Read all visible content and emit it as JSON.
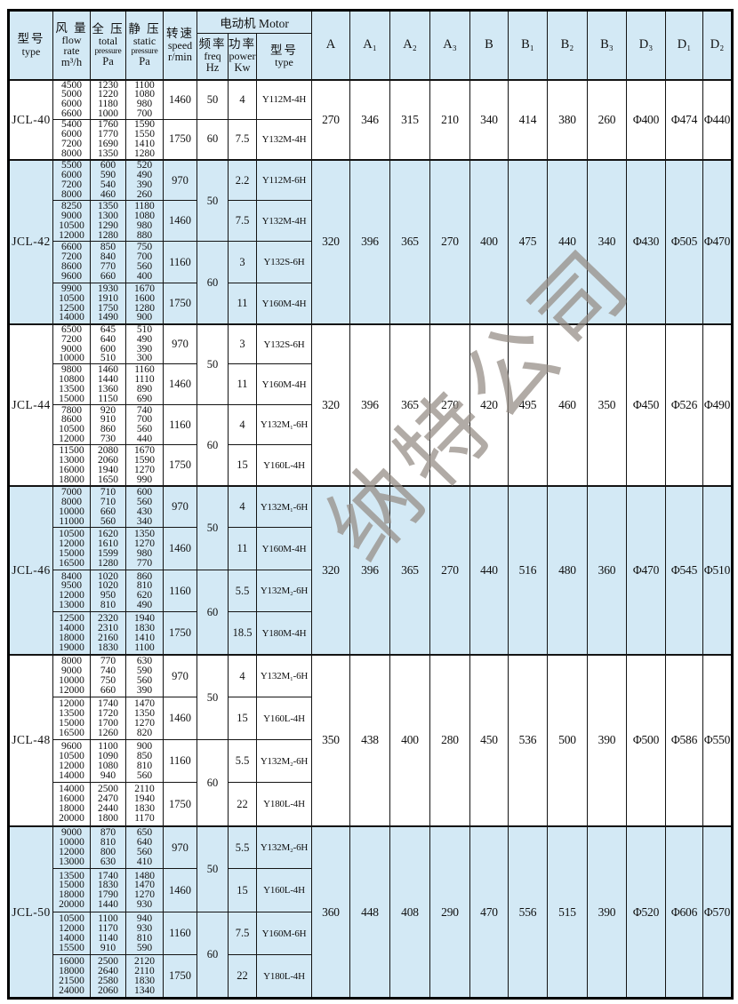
{
  "colors": {
    "shade": "#d3e9f5",
    "watermark": "#948c84"
  },
  "watermark": "纳特公司",
  "header_cells": {
    "model": [
      "型号",
      "type"
    ],
    "flow": [
      "风 量",
      "flow",
      "rate",
      "m³/h"
    ],
    "total": [
      "全 压",
      "total",
      "pressure",
      "Pa"
    ],
    "static": [
      "静 压",
      "static",
      "pressure",
      "Pa"
    ],
    "speed": [
      "转速",
      "speed",
      "r/min"
    ],
    "motor_group": "电动机 Motor",
    "freq": [
      "频率",
      "freq",
      "Hz"
    ],
    "power": [
      "功率",
      "power",
      "Kw"
    ],
    "motor_model": [
      "型号",
      "type"
    ],
    "dims": [
      "A",
      "A₁",
      "A₂",
      "A₃",
      "B",
      "B₁",
      "B₂",
      "B₃",
      "D₃",
      "D₁",
      "D₂"
    ]
  },
  "sections": [
    {
      "model": "JCL-40",
      "rows": [
        {
          "flows": [
            "4500",
            "5000",
            "6000",
            "6600"
          ],
          "totals": [
            "1230",
            "1220",
            "1180",
            "1000"
          ],
          "statics": [
            "1100",
            "1080",
            "980",
            "700"
          ],
          "speed": "1460",
          "freq": "50",
          "power": "4",
          "motor": "Y112M-4H"
        },
        {
          "flows": [
            "5400",
            "6000",
            "7200",
            "8000"
          ],
          "totals": [
            "1760",
            "1770",
            "1690",
            "1350"
          ],
          "statics": [
            "1590",
            "1550",
            "1410",
            "1280"
          ],
          "speed": "1750",
          "freq": "60",
          "power": "7.5",
          "motor": "Y132M-4H"
        }
      ],
      "dims": [
        "270",
        "346",
        "315",
        "210",
        "340",
        "414",
        "380",
        "260",
        "Φ400",
        "Φ474",
        "Φ440"
      ]
    },
    {
      "model": "JCL-42",
      "rows": [
        {
          "flows": [
            "5500",
            "6000",
            "7200",
            "8000"
          ],
          "totals": [
            "600",
            "590",
            "540",
            "460"
          ],
          "statics": [
            "520",
            "490",
            "390",
            "260"
          ],
          "speed": "970",
          "freq": "50",
          "power": "2.2",
          "motor": "Y112M-6H"
        },
        {
          "flows": [
            "8250",
            "9000",
            "10500",
            "12000"
          ],
          "totals": [
            "1350",
            "1300",
            "1290",
            "1280"
          ],
          "statics": [
            "1180",
            "1080",
            "980",
            "880"
          ],
          "speed": "1460",
          "power": "7.5",
          "motor": "Y132M-4H"
        },
        {
          "flows": [
            "6600",
            "7200",
            "8600",
            "9600"
          ],
          "totals": [
            "850",
            "840",
            "770",
            "660"
          ],
          "statics": [
            "750",
            "700",
            "560",
            "400"
          ],
          "speed": "1160",
          "freq": "60",
          "power": "3",
          "motor": "Y132S-6H"
        },
        {
          "flows": [
            "9900",
            "10500",
            "12500",
            "14000"
          ],
          "totals": [
            "1930",
            "1910",
            "1750",
            "1490"
          ],
          "statics": [
            "1670",
            "1600",
            "1280",
            "900"
          ],
          "speed": "1750",
          "power": "11",
          "motor": "Y160M-4H"
        }
      ],
      "dims": [
        "320",
        "396",
        "365",
        "270",
        "400",
        "475",
        "440",
        "340",
        "Φ430",
        "Φ505",
        "Φ470"
      ]
    },
    {
      "model": "JCL-44",
      "rows": [
        {
          "flows": [
            "6500",
            "7200",
            "9000",
            "10000"
          ],
          "totals": [
            "645",
            "640",
            "600",
            "510"
          ],
          "statics": [
            "510",
            "490",
            "390",
            "300"
          ],
          "speed": "970",
          "freq": "50",
          "power": "3",
          "motor": "Y132S-6H"
        },
        {
          "flows": [
            "9800",
            "10800",
            "13500",
            "15000"
          ],
          "totals": [
            "1460",
            "1440",
            "1360",
            "1150"
          ],
          "statics": [
            "1160",
            "1110",
            "890",
            "690"
          ],
          "speed": "1460",
          "power": "11",
          "motor": "Y160M-4H"
        },
        {
          "flows": [
            "7800",
            "8600",
            "10500",
            "12000"
          ],
          "totals": [
            "920",
            "910",
            "860",
            "730"
          ],
          "statics": [
            "740",
            "700",
            "560",
            "440"
          ],
          "speed": "1160",
          "freq": "60",
          "power": "4",
          "motor": "Y132M₁-6H"
        },
        {
          "flows": [
            "11500",
            "13000",
            "16000",
            "18000"
          ],
          "totals": [
            "2080",
            "2060",
            "1940",
            "1650"
          ],
          "statics": [
            "1670",
            "1590",
            "1270",
            "990"
          ],
          "speed": "1750",
          "power": "15",
          "motor": "Y160L-4H"
        }
      ],
      "dims": [
        "320",
        "396",
        "365",
        "270",
        "420",
        "495",
        "460",
        "350",
        "Φ450",
        "Φ526",
        "Φ490"
      ]
    },
    {
      "model": "JCL-46",
      "rows": [
        {
          "flows": [
            "7000",
            "8000",
            "10000",
            "11000"
          ],
          "totals": [
            "710",
            "710",
            "660",
            "560"
          ],
          "statics": [
            "600",
            "560",
            "430",
            "340"
          ],
          "speed": "970",
          "freq": "50",
          "power": "4",
          "motor": "Y132M₁-6H"
        },
        {
          "flows": [
            "10500",
            "12000",
            "15000",
            "16500"
          ],
          "totals": [
            "1620",
            "1610",
            "1599",
            "1280"
          ],
          "statics": [
            "1350",
            "1270",
            "980",
            "770"
          ],
          "speed": "1460",
          "power": "11",
          "motor": "Y160M-4H"
        },
        {
          "flows": [
            "8400",
            "9500",
            "12000",
            "13000"
          ],
          "totals": [
            "1020",
            "1020",
            "950",
            "810"
          ],
          "statics": [
            "860",
            "810",
            "620",
            "490"
          ],
          "speed": "1160",
          "freq": "60",
          "power": "5.5",
          "motor": "Y132M₂-6H"
        },
        {
          "flows": [
            "12500",
            "14000",
            "18000",
            "19000"
          ],
          "totals": [
            "2320",
            "2310",
            "2160",
            "1830"
          ],
          "statics": [
            "1940",
            "1830",
            "1410",
            "1100"
          ],
          "speed": "1750",
          "power": "18.5",
          "motor": "Y180M-4H"
        }
      ],
      "dims": [
        "320",
        "396",
        "365",
        "270",
        "440",
        "516",
        "480",
        "360",
        "Φ470",
        "Φ545",
        "Φ510"
      ]
    },
    {
      "model": "JCL-48",
      "rows": [
        {
          "flows": [
            "8000",
            "9000",
            "10000",
            "12000"
          ],
          "totals": [
            "770",
            "740",
            "750",
            "660"
          ],
          "statics": [
            "630",
            "590",
            "560",
            "390"
          ],
          "speed": "970",
          "freq": "50",
          "power": "4",
          "motor": "Y132M₁-6H"
        },
        {
          "flows": [
            "12000",
            "13500",
            "15000",
            "16500"
          ],
          "totals": [
            "1740",
            "1720",
            "1700",
            "1260"
          ],
          "statics": [
            "1470",
            "1350",
            "1270",
            "820"
          ],
          "speed": "1460",
          "power": "15",
          "motor": "Y160L-4H"
        },
        {
          "flows": [
            "9600",
            "10500",
            "12000",
            "14000"
          ],
          "totals": [
            "1100",
            "1090",
            "1080",
            "940"
          ],
          "statics": [
            "900",
            "850",
            "810",
            "560"
          ],
          "speed": "1160",
          "freq": "60",
          "power": "5.5",
          "motor": "Y132M₂-6H"
        },
        {
          "flows": [
            "14000",
            "16000",
            "18000",
            "20000"
          ],
          "totals": [
            "2500",
            "2470",
            "2440",
            "1800"
          ],
          "statics": [
            "2110",
            "1940",
            "1830",
            "1170"
          ],
          "speed": "1750",
          "power": "22",
          "motor": "Y180L-4H"
        }
      ],
      "dims": [
        "350",
        "438",
        "400",
        "280",
        "450",
        "536",
        "500",
        "390",
        "Φ500",
        "Φ586",
        "Φ550"
      ]
    },
    {
      "model": "JCL-50",
      "rows": [
        {
          "flows": [
            "9000",
            "10000",
            "12000",
            "13000"
          ],
          "totals": [
            "870",
            "810",
            "800",
            "630"
          ],
          "statics": [
            "650",
            "640",
            "560",
            "410"
          ],
          "speed": "970",
          "freq": "50",
          "power": "5.5",
          "motor": "Y132M₂-6H"
        },
        {
          "flows": [
            "13500",
            "15000",
            "18000",
            "20000"
          ],
          "totals": [
            "1740",
            "1830",
            "1790",
            "1440"
          ],
          "statics": [
            "1480",
            "1470",
            "1270",
            "930"
          ],
          "speed": "1460",
          "power": "15",
          "motor": "Y160L-4H"
        },
        {
          "flows": [
            "10500",
            "12000",
            "14000",
            "15500"
          ],
          "totals": [
            "1100",
            "1170",
            "1140",
            "910"
          ],
          "statics": [
            "940",
            "930",
            "810",
            "590"
          ],
          "speed": "1160",
          "freq": "60",
          "power": "7.5",
          "motor": "Y160M-6H"
        },
        {
          "flows": [
            "16000",
            "18000",
            "21500",
            "24000"
          ],
          "totals": [
            "2500",
            "2640",
            "2580",
            "2060"
          ],
          "statics": [
            "2120",
            "2110",
            "1830",
            "1340"
          ],
          "speed": "1750",
          "power": "22",
          "motor": "Y180L-4H"
        }
      ],
      "dims": [
        "360",
        "448",
        "408",
        "290",
        "470",
        "556",
        "515",
        "390",
        "Φ520",
        "Φ606",
        "Φ570"
      ]
    }
  ]
}
